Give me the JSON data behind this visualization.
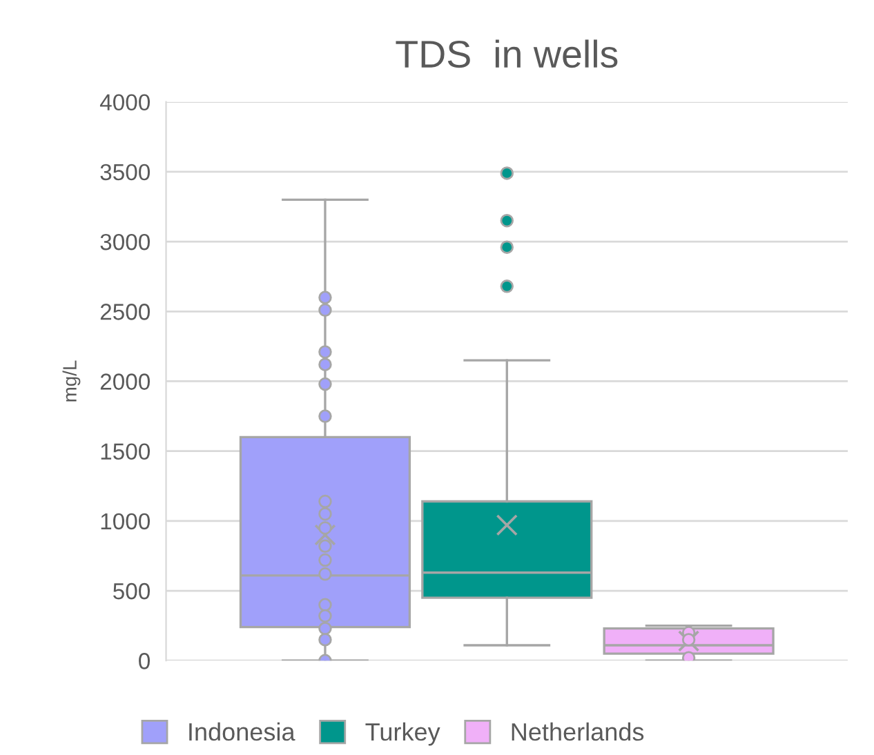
{
  "chart_data": {
    "type": "box",
    "title": "TDS  in wells",
    "ylabel": "mg/L",
    "categories": [
      null
    ],
    "series": [
      {
        "name": "Indonesia",
        "color": "#a0a0fa",
        "boxes": [
          {
            "low": 0,
            "q1": 240,
            "median": 610,
            "q3": 1600,
            "high": 3300,
            "mean": 900,
            "outliers": [
              2600,
              2510,
              2210,
              2120,
              1980,
              1750,
              1140,
              1050,
              950,
              820,
              720,
              620,
              400,
              320,
              230,
              150,
              0
            ]
          }
        ]
      },
      {
        "name": "Turkey",
        "color": "#00968c",
        "boxes": [
          {
            "low": 110,
            "q1": 450,
            "median": 630,
            "q3": 1140,
            "high": 2150,
            "mean": 970,
            "outliers": [
              3490,
              3150,
              2960,
              2680
            ]
          }
        ]
      },
      {
        "name": "Netherlands",
        "color": "#f0b0f8",
        "boxes": [
          {
            "low": 0,
            "q1": 50,
            "median": 110,
            "q3": 230,
            "high": 250,
            "mean": 140,
            "outliers": [
              200,
              150,
              20
            ]
          }
        ]
      }
    ],
    "ylim": [
      0,
      4000
    ],
    "yticks": [
      0,
      500,
      1000,
      1500,
      2000,
      2500,
      3000,
      3500,
      4000
    ],
    "grid": "y",
    "legend": "bottom",
    "marker": "circle"
  }
}
